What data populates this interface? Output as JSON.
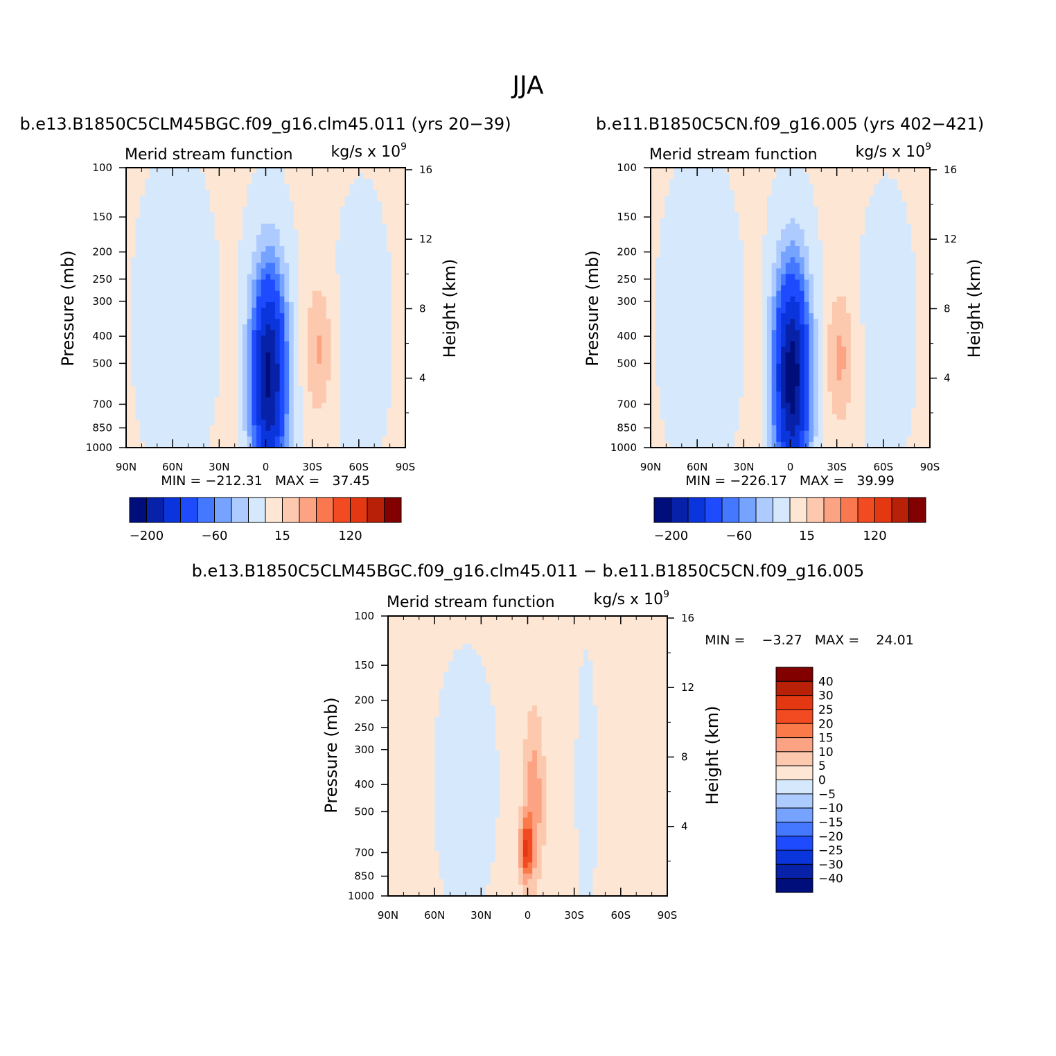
{
  "main_title": "JJA",
  "chart_data": [
    {
      "type": "heatmap",
      "case_title": "b.e13.B1850C5CLM45BGC.f09_g16.clm45.011 (yrs 20−39)",
      "left_string": "Merid stream function",
      "right_string": "kg/s x 10",
      "right_string_exp": "9",
      "ylabel": "Pressure (mb)",
      "ylabel_right": "Height (km)",
      "x_ticks": [
        "90N",
        "60N",
        "30N",
        "0",
        "30S",
        "60S",
        "90S"
      ],
      "y_ticks": [
        "100",
        "150",
        "200",
        "250",
        "300",
        "400",
        "500",
        "700",
        "850",
        "1000"
      ],
      "y_right_ticks": [
        "16",
        "12",
        "8",
        "4"
      ],
      "min_max": "MIN = −212.31   MAX =   37.45",
      "min": -212.31,
      "max": 37.45,
      "colorbar_labels": [
        "−200",
        "−60",
        "15",
        "120"
      ],
      "levels": [
        -200,
        -160,
        -120,
        -80,
        -60,
        -40,
        -20,
        0,
        15,
        30,
        45,
        60,
        90,
        120,
        150
      ],
      "colors": [
        "#000e7b",
        "#0721a8",
        "#0b35dc",
        "#1f4bff",
        "#4378ff",
        "#75a3ff",
        "#adcbff",
        "#d6e8fc",
        "#fde6d4",
        "#fcc9af",
        "#fca384",
        "#f97850",
        "#f24a21",
        "#e33811",
        "#b82008",
        "#820000"
      ]
    },
    {
      "type": "heatmap",
      "case_title": "b.e11.B1850C5CN.f09_g16.005 (yrs 402−421)",
      "left_string": "Merid stream function",
      "right_string": "kg/s x 10",
      "right_string_exp": "9",
      "ylabel": "Pressure (mb)",
      "ylabel_right": "Height (km)",
      "x_ticks": [
        "90N",
        "60N",
        "30N",
        "0",
        "30S",
        "60S",
        "90S"
      ],
      "y_ticks": [
        "100",
        "150",
        "200",
        "250",
        "300",
        "400",
        "500",
        "700",
        "850",
        "1000"
      ],
      "y_right_ticks": [
        "16",
        "12",
        "8",
        "4"
      ],
      "min_max": "MIN = −226.17   MAX =   39.99",
      "min": -226.17,
      "max": 39.99,
      "colorbar_labels": [
        "−200",
        "−60",
        "15",
        "120"
      ],
      "levels": [
        -200,
        -160,
        -120,
        -80,
        -60,
        -40,
        -20,
        0,
        15,
        30,
        45,
        60,
        90,
        120,
        150
      ],
      "colors": [
        "#000e7b",
        "#0721a8",
        "#0b35dc",
        "#1f4bff",
        "#4378ff",
        "#75a3ff",
        "#adcbff",
        "#d6e8fc",
        "#fde6d4",
        "#fcc9af",
        "#fca384",
        "#f97850",
        "#f24a21",
        "#e33811",
        "#b82008",
        "#820000"
      ]
    },
    {
      "type": "heatmap",
      "case_title": "b.e13.B1850C5CLM45BGC.f09_g16.clm45.011 − b.e11.B1850C5CN.f09_g16.005",
      "left_string": "Merid stream function",
      "right_string": "kg/s x 10",
      "right_string_exp": "9",
      "ylabel": "Pressure (mb)",
      "ylabel_right": "Height (km)",
      "x_ticks": [
        "90N",
        "60N",
        "30N",
        "0",
        "30S",
        "60S",
        "90S"
      ],
      "y_ticks": [
        "100",
        "150",
        "200",
        "250",
        "300",
        "400",
        "500",
        "700",
        "850",
        "1000"
      ],
      "y_right_ticks": [
        "16",
        "12",
        "8",
        "4"
      ],
      "min_max": "MIN =    −3.27   MAX =    24.01",
      "min": -3.27,
      "max": 24.01,
      "colorbar_labels": [
        "40",
        "30",
        "25",
        "20",
        "15",
        "10",
        "5",
        "0",
        "−5",
        "−10",
        "−15",
        "−20",
        "−25",
        "−30",
        "−40"
      ],
      "colors": [
        "#820000",
        "#b82008",
        "#e33811",
        "#f24a21",
        "#fa7a4a",
        "#fca384",
        "#fcc9af",
        "#fde6d4",
        "#d6e8fc",
        "#adcbff",
        "#75a3ff",
        "#4378ff",
        "#1f4bff",
        "#0b35dc",
        "#0721a8",
        "#000e7b"
      ]
    }
  ]
}
